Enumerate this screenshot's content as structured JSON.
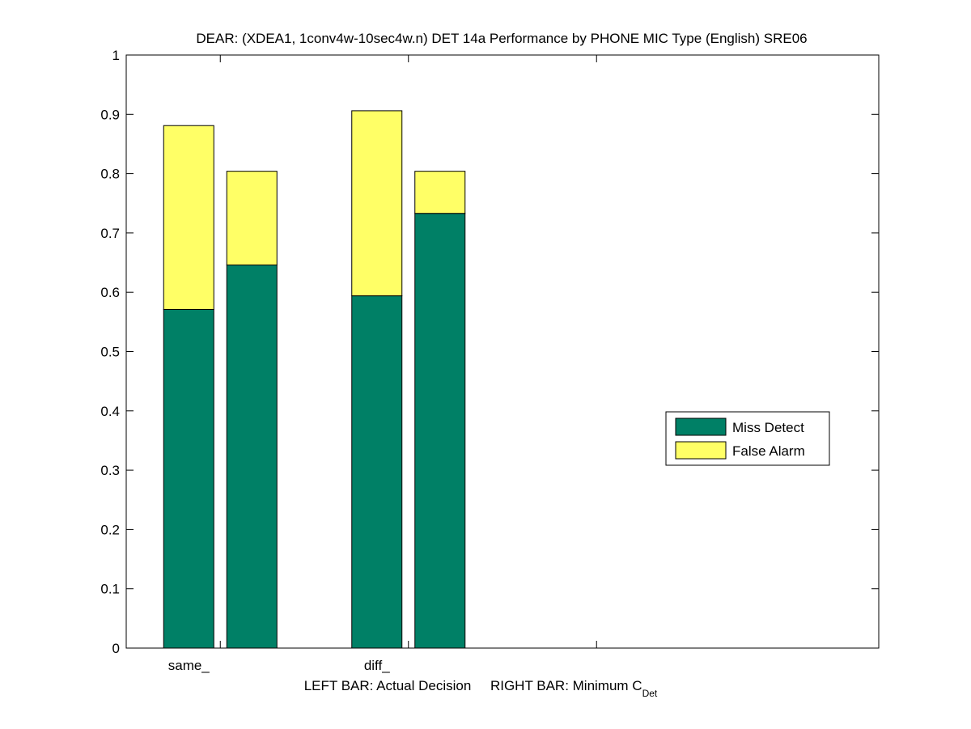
{
  "chart_data": {
    "type": "bar",
    "stacked": true,
    "title": "DEAR: (XDEA1, 1conv4w-10sec4w.n) DET 14a Performance by PHONE MIC Type (English) SRE06",
    "xlabel_main": "LEFT BAR: Actual Decision     RIGHT BAR: Minimum C",
    "xlabel_subscript": "Det",
    "ylabel": "",
    "ylim": [
      0,
      1
    ],
    "yticks": [
      "0",
      "0.1",
      "0.2",
      "0.3",
      "0.4",
      "0.5",
      "0.6",
      "0.7",
      "0.8",
      "0.9",
      "1"
    ],
    "categories": [
      "same_",
      "diff_"
    ],
    "bars_per_category": [
      "Actual Decision",
      "Minimum C_Det"
    ],
    "series": [
      {
        "name": "Miss Detect",
        "color": "#008066",
        "values": [
          [
            0.571,
            0.646
          ],
          [
            0.594,
            0.733
          ]
        ]
      },
      {
        "name": "False Alarm",
        "color": "#ffff66",
        "values": [
          [
            0.31,
            0.158
          ],
          [
            0.312,
            0.071
          ]
        ]
      }
    ],
    "legend_position": "right-middle",
    "grid": false
  }
}
